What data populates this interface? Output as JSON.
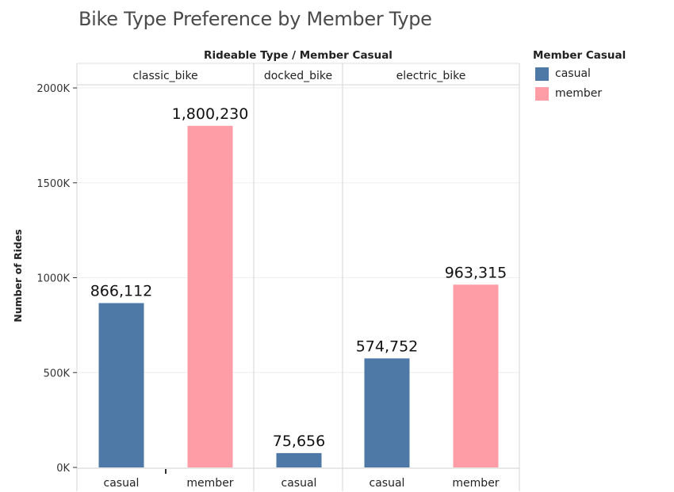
{
  "chart_data": {
    "type": "bar",
    "title": "Bike Type Preference by Member Type",
    "column_header": "Rideable Type  /  Member Casual",
    "ylabel": "Number of Rides",
    "ylim": [
      0,
      2050000
    ],
    "yticks": [
      0,
      500000,
      1000000,
      1500000,
      2000000
    ],
    "ytick_labels": [
      "0K",
      "500K",
      "1000K",
      "1500K",
      "2000K"
    ],
    "grid": true,
    "legend_title": "Member Casual",
    "legend_position": "right",
    "series_colors": {
      "casual": "#4e79a7",
      "member": "#ff9da7"
    },
    "panels": [
      {
        "name": "classic_bike",
        "bars": [
          {
            "category": "casual",
            "value": 866112,
            "label": "866,112"
          },
          {
            "category": "member",
            "value": 1800230,
            "label": "1,800,230"
          }
        ]
      },
      {
        "name": "docked_bike",
        "bars": [
          {
            "category": "casual",
            "value": 75656,
            "label": "75,656"
          }
        ]
      },
      {
        "name": "electric_bike",
        "bars": [
          {
            "category": "casual",
            "value": 574752,
            "label": "574,752"
          },
          {
            "category": "member",
            "value": 963315,
            "label": "963,315"
          }
        ]
      }
    ]
  },
  "legend": {
    "title": "Member Casual",
    "items": [
      {
        "label": "casual",
        "color": "#4e79a7"
      },
      {
        "label": "member",
        "color": "#ff9da7"
      }
    ]
  }
}
